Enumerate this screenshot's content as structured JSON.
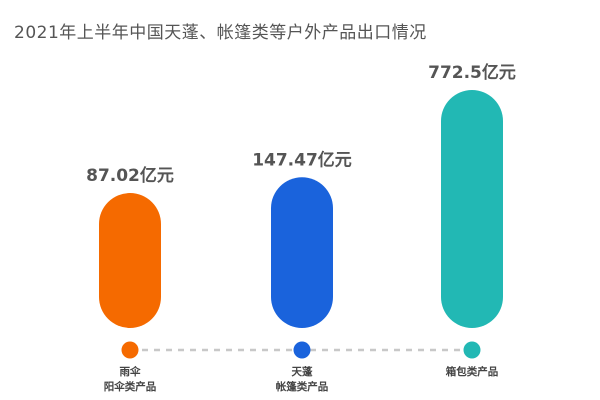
{
  "title": "2021年上半年中国天蓬、帐篷类等户外产品出口情况",
  "chart_data": {
    "type": "bar",
    "title": "2021年上半年中国天蓬、帐篷类等户外产品出口情况",
    "categories": [
      {
        "line1": "雨伞",
        "line2": "阳伞类产品"
      },
      {
        "line1": "天蓬",
        "line2": "帐篷类产品"
      },
      {
        "line1": "箱包类产品",
        "line2": ""
      }
    ],
    "values": [
      87.02,
      147.47,
      772.5
    ],
    "value_labels": [
      "87.02亿元",
      "147.47亿元",
      "772.5亿元"
    ],
    "colors": [
      "#f56a00",
      "#1a63dc",
      "#22b8b4"
    ],
    "unit": "亿元",
    "legend": "none",
    "grid": false
  }
}
